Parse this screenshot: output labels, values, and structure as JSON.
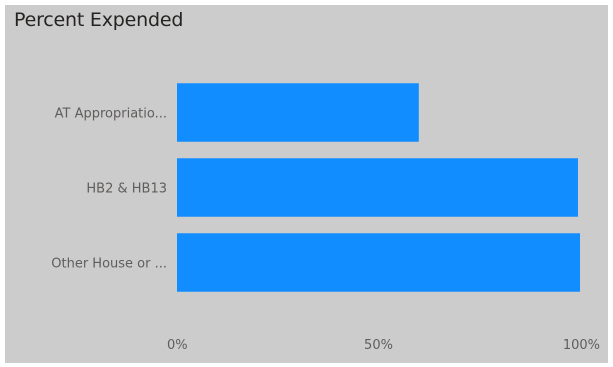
{
  "title": "Percent Expended",
  "chart_data": {
    "type": "bar",
    "orientation": "horizontal",
    "title": "Percent Expended",
    "categories": [
      "AT Appropriatio...",
      "HB2 & HB13",
      "Other House or ..."
    ],
    "values": [
      60,
      99.5,
      100
    ],
    "value_unit": "%",
    "xlim": [
      0,
      100
    ],
    "x_ticks": [
      "0%",
      "50%",
      "100%"
    ],
    "grid": false,
    "legend": "none",
    "bar_color": "#118dff",
    "background_color": "#cccccc"
  }
}
